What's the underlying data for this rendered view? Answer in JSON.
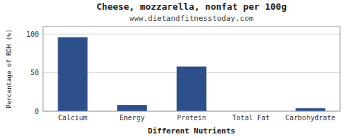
{
  "chart_data": {
    "type": "bar",
    "title": "Cheese, mozzarella, nonfat per 100g",
    "subtitle": "www.dietandfitnesstoday.com",
    "xlabel": "Different Nutrients",
    "ylabel": "Percentage of RDH (%)",
    "categories": [
      "Calcium",
      "Energy",
      "Protein",
      "Total Fat",
      "Carbohydrate"
    ],
    "values": [
      96,
      8,
      58,
      0,
      4
    ],
    "color": "#2d4f8a",
    "ylim": [
      0,
      110
    ],
    "yticks": [
      0,
      50,
      100
    ],
    "grid": true
  }
}
